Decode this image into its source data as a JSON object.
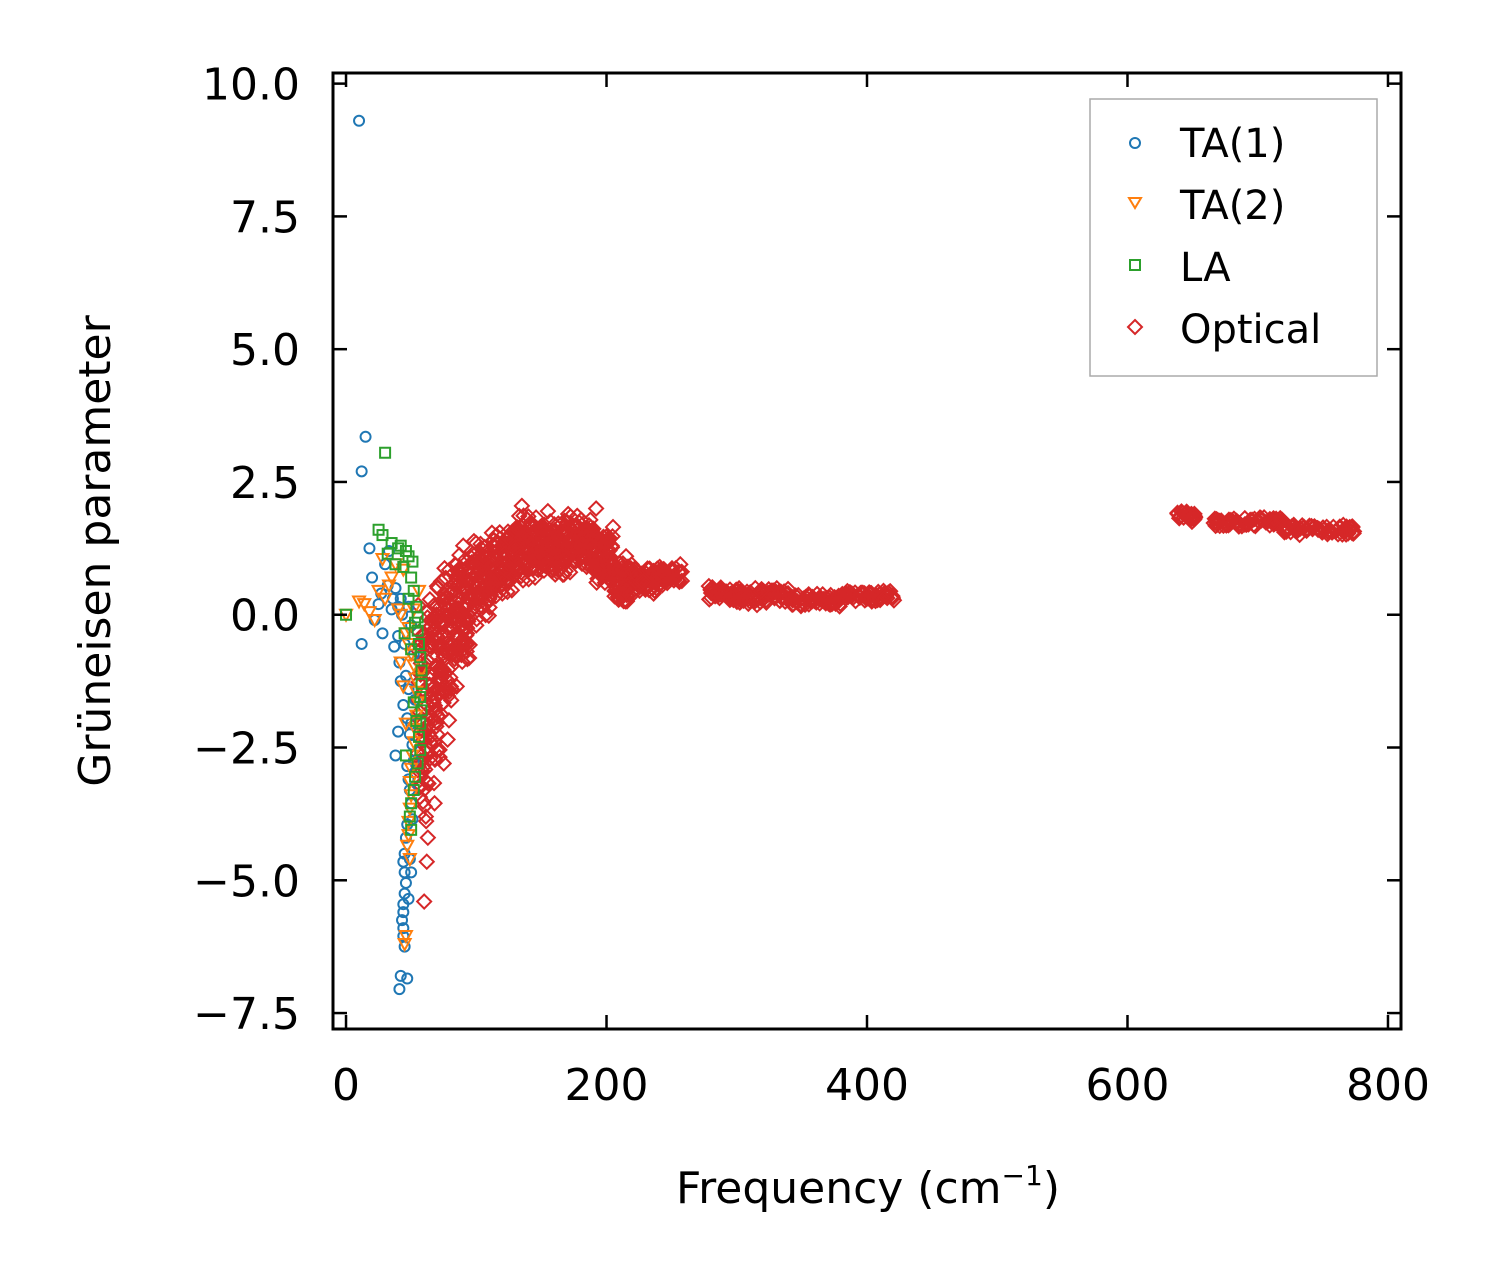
{
  "chart_data": {
    "type": "scatter",
    "xlabel": "Frequency (cm",
    "xlabel_sup": "−1",
    "xlabel_close": ")",
    "ylabel": "Grüneisen parameter",
    "xlim": [
      -10,
      810
    ],
    "ylim": [
      -7.8,
      10.2
    ],
    "x_ticks": [
      0,
      200,
      400,
      600,
      800
    ],
    "x_tick_labels": [
      "0",
      "200",
      "400",
      "600",
      "800"
    ],
    "y_ticks": [
      10,
      7.5,
      5,
      2.5,
      0,
      -2.5,
      -5,
      -7.5
    ],
    "y_tick_labels": [
      "10.0",
      "7.5",
      "5.0",
      "2.5",
      "0.0",
      "−2.5",
      "−5.0",
      "−7.5"
    ],
    "legend_position": "top-right",
    "series": [
      {
        "name": "TA(1)",
        "marker": "circle",
        "color": "#1f77b4",
        "points": [
          [
            10,
            9.3
          ],
          [
            15,
            3.35
          ],
          [
            12,
            2.7
          ],
          [
            12,
            -0.55
          ],
          [
            18,
            1.25
          ],
          [
            20,
            0.7
          ],
          [
            22,
            -0.1
          ],
          [
            25,
            0.2
          ],
          [
            27,
            0.4
          ],
          [
            28,
            -0.35
          ],
          [
            30,
            0.95
          ],
          [
            32,
            0.55
          ],
          [
            33,
            1.2
          ],
          [
            35,
            0.1
          ],
          [
            36,
            0.3
          ],
          [
            37,
            -0.6
          ],
          [
            38,
            0.5
          ],
          [
            40,
            0.15
          ],
          [
            40,
            -0.4
          ],
          [
            41,
            -0.9
          ],
          [
            42,
            -1.25
          ],
          [
            42,
            0.3
          ],
          [
            43,
            0.0
          ],
          [
            44,
            -1.7
          ],
          [
            45,
            -0.55
          ],
          [
            46,
            -1.15
          ],
          [
            47,
            -1.95
          ],
          [
            48,
            -1.4
          ],
          [
            49,
            -2.25
          ],
          [
            50,
            -2.05
          ],
          [
            51,
            -2.45
          ],
          [
            47,
            -2.85
          ],
          [
            48,
            -3.1
          ],
          [
            49,
            -3.3
          ],
          [
            50,
            -3.55
          ],
          [
            47,
            -3.95
          ],
          [
            46,
            -4.2
          ],
          [
            45,
            -4.5
          ],
          [
            44,
            -4.65
          ],
          [
            45,
            -4.85
          ],
          [
            46,
            -5.05
          ],
          [
            45,
            -5.25
          ],
          [
            44,
            -5.45
          ],
          [
            44,
            -5.6
          ],
          [
            43,
            -5.75
          ],
          [
            44,
            -5.9
          ],
          [
            44,
            -6.05
          ],
          [
            45,
            -6.25
          ],
          [
            40,
            -2.2
          ],
          [
            38,
            -2.65
          ],
          [
            42,
            -6.8
          ],
          [
            47,
            -6.85
          ],
          [
            41,
            -7.05
          ],
          [
            50,
            -4.85
          ],
          [
            48,
            -5.35
          ],
          [
            49,
            -4.6
          ],
          [
            51,
            -3.85
          ],
          [
            52,
            -2.75
          ],
          [
            53,
            -1.6
          ],
          [
            52,
            -0.75
          ],
          [
            50,
            -0.2
          ],
          [
            48,
            0.15
          ]
        ]
      },
      {
        "name": "TA(2)",
        "marker": "triangle-down",
        "color": "#ff7f0e",
        "points": [
          [
            0,
            0.0
          ],
          [
            10,
            0.25
          ],
          [
            14,
            0.2
          ],
          [
            18,
            0.05
          ],
          [
            22,
            -0.1
          ],
          [
            25,
            0.45
          ],
          [
            28,
            1.05
          ],
          [
            30,
            0.3
          ],
          [
            33,
            0.55
          ],
          [
            35,
            0.7
          ],
          [
            38,
            0.95
          ],
          [
            40,
            0.1
          ],
          [
            42,
            0.0
          ],
          [
            44,
            0.85
          ],
          [
            46,
            -0.35
          ],
          [
            48,
            -0.55
          ],
          [
            50,
            -0.75
          ],
          [
            52,
            -0.95
          ],
          [
            53,
            -1.2
          ],
          [
            54,
            -1.45
          ],
          [
            55,
            -1.65
          ],
          [
            54,
            -1.9
          ],
          [
            53,
            -2.15
          ],
          [
            52,
            -2.4
          ],
          [
            51,
            -2.65
          ],
          [
            50,
            -2.9
          ],
          [
            49,
            -3.15
          ],
          [
            50,
            -3.4
          ],
          [
            49,
            -3.65
          ],
          [
            48,
            -3.9
          ],
          [
            48,
            -4.15
          ],
          [
            47,
            -4.35
          ],
          [
            49,
            -4.6
          ],
          [
            46,
            -6.05
          ],
          [
            45,
            -6.2
          ],
          [
            42,
            -0.9
          ],
          [
            44,
            -1.35
          ],
          [
            46,
            -2.05
          ],
          [
            48,
            -0.25
          ],
          [
            52,
            0.1
          ],
          [
            56,
            0.45
          ],
          [
            58,
            -1.05
          ]
        ]
      },
      {
        "name": "LA",
        "marker": "square",
        "color": "#2ca02c",
        "points": [
          [
            0,
            0.0
          ],
          [
            30,
            3.05
          ],
          [
            25,
            1.6
          ],
          [
            28,
            1.5
          ],
          [
            32,
            1.15
          ],
          [
            35,
            1.35
          ],
          [
            38,
            0.95
          ],
          [
            40,
            1.25
          ],
          [
            42,
            1.3
          ],
          [
            44,
            0.9
          ],
          [
            46,
            1.2
          ],
          [
            48,
            1.1
          ],
          [
            50,
            0.7
          ],
          [
            52,
            0.45
          ],
          [
            54,
            0.15
          ],
          [
            55,
            -0.05
          ],
          [
            55,
            -0.3
          ],
          [
            56,
            -0.55
          ],
          [
            57,
            -0.8
          ],
          [
            58,
            -1.05
          ],
          [
            58,
            -1.3
          ],
          [
            57,
            -1.55
          ],
          [
            58,
            -1.8
          ],
          [
            57,
            -2.05
          ],
          [
            56,
            -2.3
          ],
          [
            57,
            -2.55
          ],
          [
            55,
            -2.8
          ],
          [
            53,
            -3.05
          ],
          [
            52,
            -3.3
          ],
          [
            50,
            -3.55
          ],
          [
            49,
            -3.8
          ],
          [
            50,
            -4.05
          ],
          [
            46,
            -2.65
          ],
          [
            52,
            -1.65
          ],
          [
            54,
            -2.0
          ],
          [
            50,
            -0.65
          ],
          [
            48,
            0.3
          ],
          [
            51,
            1.0
          ],
          [
            53,
            -0.15
          ],
          [
            45,
            -0.35
          ]
        ]
      },
      {
        "name": "Optical",
        "marker": "diamond",
        "color": "#d62728",
        "segments": [
          {
            "x0": 55,
            "x1": 63,
            "ymin": -4.3,
            "ymax": 0.2,
            "n": 30
          },
          {
            "x0": 63,
            "x1": 72,
            "ymin": -3.2,
            "ymax": 0.6,
            "n": 36
          },
          {
            "x0": 72,
            "x1": 82,
            "ymin": -2.0,
            "ymax": 0.9,
            "n": 36
          },
          {
            "x0": 82,
            "x1": 95,
            "ymin": -0.9,
            "ymax": 1.2,
            "n": 40
          },
          {
            "x0": 95,
            "x1": 112,
            "ymin": -0.1,
            "ymax": 1.4,
            "n": 44
          },
          {
            "x0": 112,
            "x1": 130,
            "ymin": 0.4,
            "ymax": 1.7,
            "n": 44
          },
          {
            "x0": 130,
            "x1": 150,
            "ymin": 0.6,
            "ymax": 1.9,
            "n": 48
          },
          {
            "x0": 150,
            "x1": 170,
            "ymin": 0.75,
            "ymax": 1.8,
            "n": 48
          },
          {
            "x0": 170,
            "x1": 190,
            "ymin": 0.9,
            "ymax": 1.9,
            "n": 44
          },
          {
            "x0": 190,
            "x1": 205,
            "ymin": 0.6,
            "ymax": 1.6,
            "n": 36
          },
          {
            "x0": 205,
            "x1": 222,
            "ymin": 0.25,
            "ymax": 1.0,
            "n": 34
          },
          {
            "x0": 222,
            "x1": 240,
            "ymin": 0.35,
            "ymax": 0.9,
            "n": 28
          },
          {
            "x0": 240,
            "x1": 258,
            "ymin": 0.55,
            "ymax": 0.95,
            "n": 22
          },
          {
            "x0": 278,
            "x1": 300,
            "ymin": 0.25,
            "ymax": 0.55,
            "n": 24
          },
          {
            "x0": 300,
            "x1": 340,
            "ymin": 0.18,
            "ymax": 0.5,
            "n": 32
          },
          {
            "x0": 340,
            "x1": 380,
            "ymin": 0.15,
            "ymax": 0.4,
            "n": 28
          },
          {
            "x0": 380,
            "x1": 422,
            "ymin": 0.25,
            "ymax": 0.45,
            "n": 28
          },
          {
            "x0": 638,
            "x1": 652,
            "ymin": 1.75,
            "ymax": 1.95,
            "n": 14
          },
          {
            "x0": 665,
            "x1": 720,
            "ymin": 1.65,
            "ymax": 1.85,
            "n": 34
          },
          {
            "x0": 720,
            "x1": 775,
            "ymin": 1.5,
            "ymax": 1.7,
            "n": 34
          }
        ],
        "outliers": [
          [
            60,
            -5.4
          ],
          [
            62,
            -4.65
          ],
          [
            75,
            -2.8
          ],
          [
            78,
            -2.35
          ],
          [
            68,
            -3.55
          ],
          [
            85,
            -1.35
          ],
          [
            90,
            1.3
          ],
          [
            135,
            2.05
          ],
          [
            140,
            1.85
          ],
          [
            155,
            1.95
          ],
          [
            160,
            1.7
          ],
          [
            192,
            2.0
          ],
          [
            205,
            1.65
          ],
          [
            172,
            0.8
          ],
          [
            210,
            0.3
          ],
          [
            85,
            -0.75
          ],
          [
            100,
            -0.2
          ],
          [
            115,
            0.35
          ],
          [
            215,
            1.1
          ]
        ]
      }
    ]
  }
}
